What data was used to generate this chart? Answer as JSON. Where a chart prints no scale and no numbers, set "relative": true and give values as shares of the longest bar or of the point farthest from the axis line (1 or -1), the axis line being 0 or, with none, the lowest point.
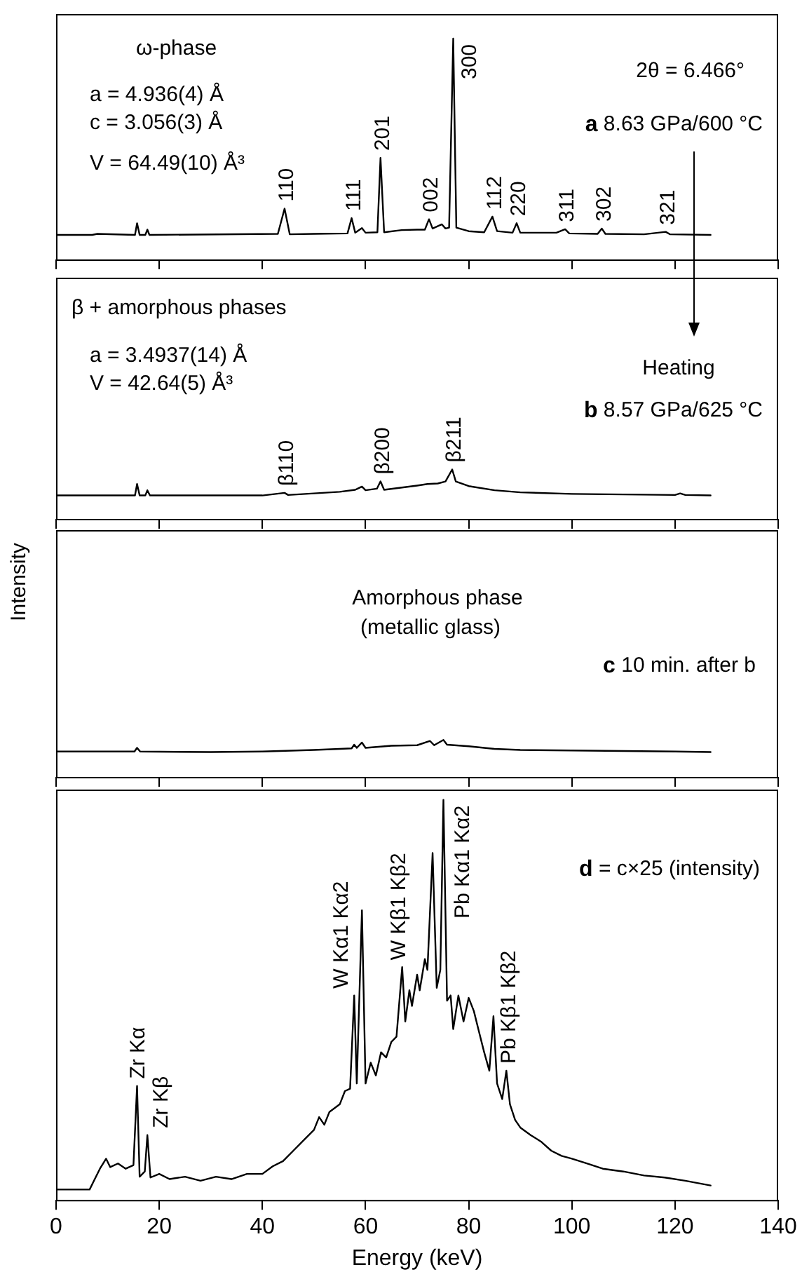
{
  "chart_data": [
    {
      "type": "line",
      "relative": true,
      "color": "#000000",
      "xlim": [
        0,
        140
      ],
      "xticks": [
        0,
        20,
        40,
        60,
        80,
        100,
        120,
        140
      ],
      "tick_labels": false,
      "x": [
        0,
        7,
        8,
        15.3,
        15.7,
        16.2,
        17.3,
        17.7,
        18.1,
        43,
        44.3,
        45.3,
        50,
        56.5,
        57.3,
        58,
        59.3,
        60,
        62.3,
        62.9,
        63.6,
        67,
        70,
        71.5,
        72.3,
        73,
        74.8,
        75.5,
        76.2,
        77,
        77.6,
        80,
        83,
        84.6,
        85.5,
        88.5,
        89.3,
        90,
        97,
        98.7,
        99.5,
        105,
        105.8,
        106.5,
        114,
        118.2,
        119,
        126.9
      ],
      "values": [
        0.111,
        0.111,
        0.116,
        0.111,
        0.164,
        0.111,
        0.111,
        0.135,
        0.111,
        0.116,
        0.23,
        0.114,
        0.116,
        0.118,
        0.187,
        0.121,
        0.142,
        0.121,
        0.123,
        0.46,
        0.123,
        0.133,
        0.135,
        0.135,
        0.182,
        0.14,
        0.159,
        0.14,
        0.144,
        1,
        0.144,
        0.128,
        0.123,
        0.194,
        0.128,
        0.121,
        0.164,
        0.121,
        0.121,
        0.137,
        0.118,
        0.116,
        0.14,
        0.116,
        0.114,
        0.125,
        0.114,
        0.111
      ],
      "annotations": [
        "ω-phase",
        "a = 4.936(4) Å",
        "c = 3.056(3) Å",
        "V = 64.49(10) Å³",
        "2θ = 6.466°",
        "a 8.63 GPa/600 °C",
        {
          "text": "110",
          "x": 44.3,
          "y": 0.23
        },
        {
          "text": "111",
          "x": 57.3,
          "y": 0.187
        },
        {
          "text": "201",
          "x": 62.9,
          "y": 0.46
        },
        {
          "text": "002",
          "x": 72.3,
          "y": 0.182
        },
        {
          "text": "300",
          "x": 77,
          "y": 1
        },
        {
          "text": "112",
          "x": 84.6,
          "y": 0.194
        },
        {
          "text": "220",
          "x": 89.3,
          "y": 0.164
        },
        {
          "text": "311",
          "x": 98.7,
          "y": 0.137
        },
        {
          "text": "302",
          "x": 105.8,
          "y": 0.14
        },
        {
          "text": "321",
          "x": 118.2,
          "y": 0.125
        }
      ]
    },
    {
      "type": "line",
      "relative": true,
      "color": "#000000",
      "xlim": [
        0,
        140
      ],
      "xticks": [
        0,
        20,
        40,
        60,
        80,
        100,
        120,
        140
      ],
      "tick_labels": false,
      "x": [
        0,
        7,
        15.3,
        15.7,
        16.2,
        17.3,
        17.7,
        18.2,
        30,
        40,
        44.3,
        45,
        50,
        55,
        58,
        59.3,
        60,
        62.2,
        62.9,
        63.6,
        66,
        70,
        72,
        74,
        75.5,
        76.8,
        77.5,
        80,
        85,
        90,
        100,
        110,
        120,
        121,
        122,
        126.9
      ],
      "values": [
        0.474,
        0.474,
        0.474,
        0.705,
        0.474,
        0.474,
        0.579,
        0.474,
        0.474,
        0.474,
        0.526,
        0.484,
        0.516,
        0.547,
        0.589,
        0.653,
        0.579,
        0.611,
        0.758,
        0.589,
        0.621,
        0.674,
        0.705,
        0.716,
        0.758,
        1,
        0.758,
        0.663,
        0.579,
        0.537,
        0.505,
        0.495,
        0.484,
        0.516,
        0.484,
        0.474
      ],
      "annotations": [
        "β + amorphous phases",
        "a = 3.4937(14) Å",
        "V = 42.64(5) Å³",
        "Heating",
        "b 8.57 GPa/625 °C",
        {
          "text": "β110",
          "x": 44.3,
          "y": 0.526
        },
        {
          "text": "β200",
          "x": 62.9,
          "y": 0.758
        },
        {
          "text": "β211",
          "x": 76.8,
          "y": 1
        }
      ]
    },
    {
      "type": "line",
      "relative": true,
      "color": "#000000",
      "xlim": [
        0,
        140
      ],
      "xticks": [
        0,
        20,
        40,
        60,
        80,
        100,
        120,
        140
      ],
      "tick_labels": false,
      "ylabel": "Intensity",
      "x": [
        0,
        15.2,
        15.7,
        16.3,
        30,
        40,
        50,
        55,
        57.3,
        57.8,
        58.3,
        59.3,
        60,
        65,
        70,
        72.5,
        73.3,
        75.1,
        75.8,
        80,
        85,
        90,
        100,
        110,
        120,
        126.9
      ],
      "values": [
        0.686,
        0.686,
        0.786,
        0.686,
        0.671,
        0.686,
        0.729,
        0.757,
        0.771,
        0.871,
        0.786,
        0.929,
        0.786,
        0.843,
        0.857,
        0.971,
        0.857,
        1,
        0.871,
        0.829,
        0.757,
        0.729,
        0.714,
        0.7,
        0.686,
        0.671
      ],
      "annotations": [
        "Amorphous phase",
        "(metallic glass)",
        "c 10 min. after b"
      ]
    },
    {
      "type": "line",
      "relative": true,
      "color": "#000000",
      "xlim": [
        0,
        140
      ],
      "xticks": [
        0,
        20,
        40,
        60,
        80,
        100,
        120,
        140
      ],
      "tick_labels": "x",
      "xlabel": "Energy (keV)",
      "x": [
        0,
        6.5,
        7.5,
        8.5,
        9.7,
        10.5,
        12,
        13.5,
        15,
        15.7,
        16.2,
        17.2,
        17.7,
        18.3,
        20,
        22,
        25,
        28,
        31,
        34,
        37,
        40,
        42,
        44,
        46,
        48,
        50,
        51,
        52,
        53,
        55,
        56,
        57,
        57.8,
        58.3,
        59.3,
        60,
        61,
        62,
        63,
        64,
        65,
        66,
        67.1,
        67.7,
        68.5,
        69,
        70,
        70.5,
        71.5,
        72,
        73,
        73.8,
        74.5,
        75.1,
        75.8,
        76.5,
        77,
        78,
        79,
        80,
        81,
        82,
        83,
        84,
        84.8,
        85.5,
        86.5,
        87.3,
        88,
        89,
        90,
        92,
        94,
        96,
        98,
        100,
        103,
        106,
        110,
        114,
        118,
        122,
        126.9
      ],
      "values": [
        0.026,
        0.026,
        0.052,
        0.078,
        0.103,
        0.082,
        0.091,
        0.078,
        0.087,
        0.285,
        0.058,
        0.071,
        0.162,
        0.056,
        0.065,
        0.052,
        0.058,
        0.048,
        0.058,
        0.052,
        0.065,
        0.065,
        0.084,
        0.097,
        0.123,
        0.149,
        0.175,
        0.207,
        0.188,
        0.22,
        0.239,
        0.272,
        0.278,
        0.511,
        0.291,
        0.724,
        0.291,
        0.343,
        0.311,
        0.369,
        0.356,
        0.395,
        0.408,
        0.582,
        0.446,
        0.524,
        0.485,
        0.563,
        0.524,
        0.602,
        0.575,
        0.867,
        0.53,
        0.575,
        1,
        0.498,
        0.511,
        0.427,
        0.511,
        0.446,
        0.505,
        0.472,
        0.42,
        0.369,
        0.323,
        0.459,
        0.291,
        0.252,
        0.323,
        0.239,
        0.2,
        0.181,
        0.162,
        0.146,
        0.123,
        0.11,
        0.103,
        0.091,
        0.078,
        0.071,
        0.061,
        0.056,
        0.048,
        0.036
      ],
      "annotations": [
        "d = c×25 (intensity)",
        {
          "text": "Zr Kα",
          "x": 15.7,
          "y": 0.285
        },
        {
          "text": "Zr Kβ",
          "x": 17.7,
          "y": 0.162
        },
        {
          "text": "W Kα1 Kα2",
          "x": 57.8,
          "y": 0.511
        },
        {
          "text": "W Kβ1 Kβ2",
          "x": 67.1,
          "y": 0.582
        },
        {
          "text": "Pb Kα1 Kα2",
          "x": 75.1,
          "y": 1
        },
        {
          "text": "Pb Kβ1 Kβ2",
          "x": 87.3,
          "y": 0.323
        }
      ]
    }
  ]
}
